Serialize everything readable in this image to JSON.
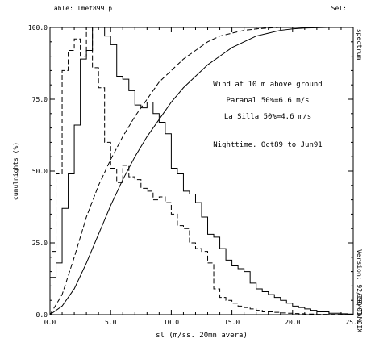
{
  "chart_data": {
    "type": "line",
    "corner_left": "Table: lmet899lp",
    "corner_right": "Sel:",
    "xlabel": "sl (m/ss. 20mn avera)",
    "ylabel": "cumulnights (%)",
    "right_labels": [
      "spectrum",
      "Version: 92/09/01",
      "ESO-TAMOIX"
    ],
    "xlim": [
      0,
      25
    ],
    "ylim": [
      0,
      100
    ],
    "xticks": [
      0,
      5,
      10,
      15,
      20,
      25
    ],
    "yticks": [
      0,
      25,
      50,
      75,
      100
    ],
    "xtick_labels": [
      "0.0",
      "5.0",
      "10.0",
      "15.0",
      "20.0",
      "25.0"
    ],
    "ytick_labels": [
      "0.0",
      "25.0",
      "50.0",
      "75.0",
      "100.0"
    ],
    "annotations": [
      "Wind at 10 m above ground",
      "Paranal 50%=6.6 m/s",
      "La Silla 50%=4.6 m/s",
      "Nighttime. Oct89 to Jun91"
    ],
    "series": [
      {
        "style": "solid",
        "kind": "histogram",
        "bin_width": 0.5,
        "x": [
          0,
          0.5,
          1,
          1.5,
          2,
          2.5,
          3,
          3.5,
          4,
          4.5,
          5,
          5.5,
          6,
          6.5,
          7,
          7.5,
          8,
          8.5,
          9,
          9.5,
          10,
          10.5,
          11,
          11.5,
          12,
          12.5,
          13,
          13.5,
          14,
          14.5,
          15,
          15.5,
          16,
          16.5,
          17,
          17.5,
          18,
          18.5,
          19,
          19.5,
          20,
          20.5,
          21,
          21.5,
          22,
          22.5,
          23,
          23.5,
          24,
          24.5
        ],
        "values": [
          13,
          18,
          37,
          49,
          66,
          89,
          92,
          100,
          100,
          97,
          94,
          83,
          82,
          78,
          73,
          72,
          74,
          70,
          67,
          63,
          51,
          49,
          43,
          42,
          39,
          34,
          28,
          27,
          23,
          19,
          17,
          16,
          15,
          11,
          9,
          8,
          7,
          6,
          5,
          4,
          3,
          2.5,
          2,
          1.5,
          1,
          1,
          0.5,
          0.5,
          0.3,
          0.2
        ]
      },
      {
        "style": "dashed",
        "kind": "histogram",
        "bin_width": 0.5,
        "x": [
          0,
          0.5,
          1,
          1.5,
          2,
          2.5,
          3,
          3.5,
          4,
          4.5,
          5,
          5.5,
          6,
          6.5,
          7,
          7.5,
          8,
          8.5,
          9,
          9.5,
          10,
          10.5,
          11,
          11.5,
          12,
          12.5,
          13,
          13.5,
          14,
          14.5,
          15,
          15.5,
          16,
          16.5,
          17,
          17.5,
          18,
          18.5,
          19,
          19.5,
          20,
          20.5,
          21,
          21.5,
          22,
          22.5,
          23,
          23.5,
          24,
          24.5
        ],
        "values": [
          22,
          49,
          85,
          92,
          96,
          90,
          100,
          86,
          79,
          60,
          51,
          46,
          52,
          48,
          47,
          44,
          43,
          40,
          41,
          39,
          35,
          31,
          30,
          25,
          23,
          22,
          18,
          9,
          6,
          5,
          4,
          3,
          2.5,
          2,
          1.5,
          1,
          1,
          0.8,
          0.6,
          0.5,
          0.4,
          0.3,
          0.2,
          0.2,
          0.1,
          0.1,
          0.1,
          0.1,
          0.1,
          0.1
        ]
      },
      {
        "style": "solid",
        "kind": "cumulative",
        "x": [
          0,
          1,
          2,
          3,
          4,
          5,
          6,
          7,
          8,
          9,
          10,
          11,
          12,
          13,
          14,
          15,
          16,
          17,
          18,
          19,
          20,
          21,
          22,
          23,
          24,
          25
        ],
        "values": [
          0,
          3,
          9,
          18,
          28,
          38,
          47,
          55,
          62,
          68,
          74,
          79,
          83,
          87,
          90,
          93,
          95,
          97,
          98,
          99,
          99.5,
          99.8,
          99.9,
          100,
          100,
          100
        ]
      },
      {
        "style": "dashed",
        "kind": "cumulative",
        "x": [
          0,
          1,
          2,
          3,
          4,
          5,
          6,
          7,
          8,
          9,
          10,
          11,
          12,
          13,
          14,
          15,
          16,
          17,
          18,
          19,
          20,
          21,
          22,
          23,
          24,
          25
        ],
        "values": [
          0,
          7,
          20,
          34,
          45,
          54,
          62,
          69,
          75,
          81,
          85,
          89,
          92,
          95,
          97,
          98,
          99,
          99.5,
          99.8,
          100,
          100,
          100,
          100,
          100,
          100,
          100
        ]
      }
    ]
  }
}
